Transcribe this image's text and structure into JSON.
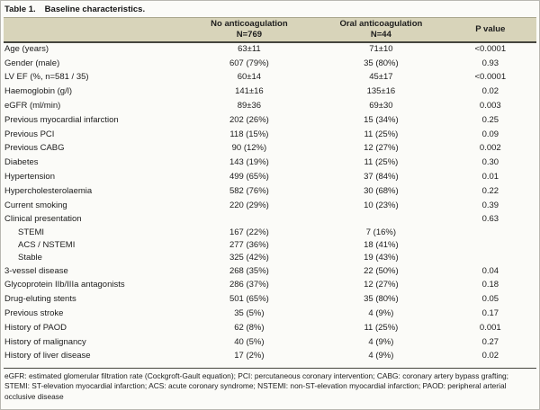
{
  "title": {
    "number": "Table 1.",
    "caption": "Baseline characteristics."
  },
  "table": {
    "columns": [
      {
        "label": "No anticoagulation",
        "sub": "N=769"
      },
      {
        "label": "Oral anticoagulation",
        "sub": "N=44"
      },
      {
        "label": "P value",
        "sub": ""
      }
    ],
    "rows": [
      {
        "label": "Age (years)",
        "indent": false,
        "no_anticoag": "63±11",
        "oral_anticoag": "71±10",
        "p": "<0.0001"
      },
      {
        "label": "Gender (male)",
        "indent": false,
        "no_anticoag": "607 (79%)",
        "oral_anticoag": "35 (80%)",
        "p": "0.93"
      },
      {
        "label": "LV EF (%, n=581 / 35)",
        "indent": false,
        "no_anticoag": "60±14",
        "oral_anticoag": "45±17",
        "p": "<0.0001"
      },
      {
        "label": "Haemoglobin (g/l)",
        "indent": false,
        "no_anticoag": "141±16",
        "oral_anticoag": "135±16",
        "p": "0.02"
      },
      {
        "label": "eGFR (ml/min)",
        "indent": false,
        "no_anticoag": "89±36",
        "oral_anticoag": "69±30",
        "p": "0.003"
      },
      {
        "label": "Previous myocardial infarction",
        "indent": false,
        "no_anticoag": "202 (26%)",
        "oral_anticoag": "15 (34%)",
        "p": "0.25"
      },
      {
        "label": "Previous PCI",
        "indent": false,
        "no_anticoag": "118 (15%)",
        "oral_anticoag": "11 (25%)",
        "p": "0.09"
      },
      {
        "label": "Previous CABG",
        "indent": false,
        "no_anticoag": "90 (12%)",
        "oral_anticoag": "12 (27%)",
        "p": "0.002"
      },
      {
        "label": "Diabetes",
        "indent": false,
        "no_anticoag": "143 (19%)",
        "oral_anticoag": "11 (25%)",
        "p": "0.30"
      },
      {
        "label": "Hypertension",
        "indent": false,
        "no_anticoag": "499 (65%)",
        "oral_anticoag": "37 (84%)",
        "p": "0.01"
      },
      {
        "label": "Hypercholesterolaemia",
        "indent": false,
        "no_anticoag": "582 (76%)",
        "oral_anticoag": "30 (68%)",
        "p": "0.22"
      },
      {
        "label": "Current smoking",
        "indent": false,
        "no_anticoag": "220 (29%)",
        "oral_anticoag": "10 (23%)",
        "p": "0.39"
      },
      {
        "label": "Clinical presentation",
        "indent": false,
        "no_anticoag": "",
        "oral_anticoag": "",
        "p": "0.63"
      },
      {
        "label": "STEMI",
        "indent": true,
        "no_anticoag": "167 (22%)",
        "oral_anticoag": "7 (16%)",
        "p": ""
      },
      {
        "label": "ACS / NSTEMI",
        "indent": true,
        "no_anticoag": "277 (36%)",
        "oral_anticoag": "18 (41%)",
        "p": ""
      },
      {
        "label": "Stable",
        "indent": true,
        "no_anticoag": "325 (42%)",
        "oral_anticoag": "19 (43%)",
        "p": ""
      },
      {
        "label": "3-vessel disease",
        "indent": false,
        "no_anticoag": "268 (35%)",
        "oral_anticoag": "22 (50%)",
        "p": "0.04"
      },
      {
        "label": "Glycoprotein IIb/IIIa antagonists",
        "indent": false,
        "no_anticoag": "286 (37%)",
        "oral_anticoag": "12 (27%)",
        "p": "0.18"
      },
      {
        "label": "Drug-eluting stents",
        "indent": false,
        "no_anticoag": "501 (65%)",
        "oral_anticoag": "35 (80%)",
        "p": "0.05"
      },
      {
        "label": "Previous stroke",
        "indent": false,
        "no_anticoag": "35 (5%)",
        "oral_anticoag": "4 (9%)",
        "p": "0.17"
      },
      {
        "label": "History of PAOD",
        "indent": false,
        "no_anticoag": "62 (8%)",
        "oral_anticoag": "11 (25%)",
        "p": "0.001"
      },
      {
        "label": "History of malignancy",
        "indent": false,
        "no_anticoag": "40 (5%)",
        "oral_anticoag": "4 (9%)",
        "p": "0.27"
      },
      {
        "label": "History of liver disease",
        "indent": false,
        "no_anticoag": "17 (2%)",
        "oral_anticoag": "4 (9%)",
        "p": "0.02"
      }
    ]
  },
  "footnote": "eGFR: estimated glomerular filtration rate (Cockgroft-Gault equation); PCI: percutaneous coronary intervention; CABG: coronary artery bypass grafting; STEMI: ST-elevation myocardial infarction; ACS: acute coronary syndrome; NSTEMI: non-ST-elevation myocardial infarction; PAOD: peripheral arterial occlusive disease",
  "colors": {
    "header_band": "#d8d4ba",
    "rule_dark": "#45453e",
    "text": "#1c1c1c",
    "background": "#fbfbf8"
  }
}
